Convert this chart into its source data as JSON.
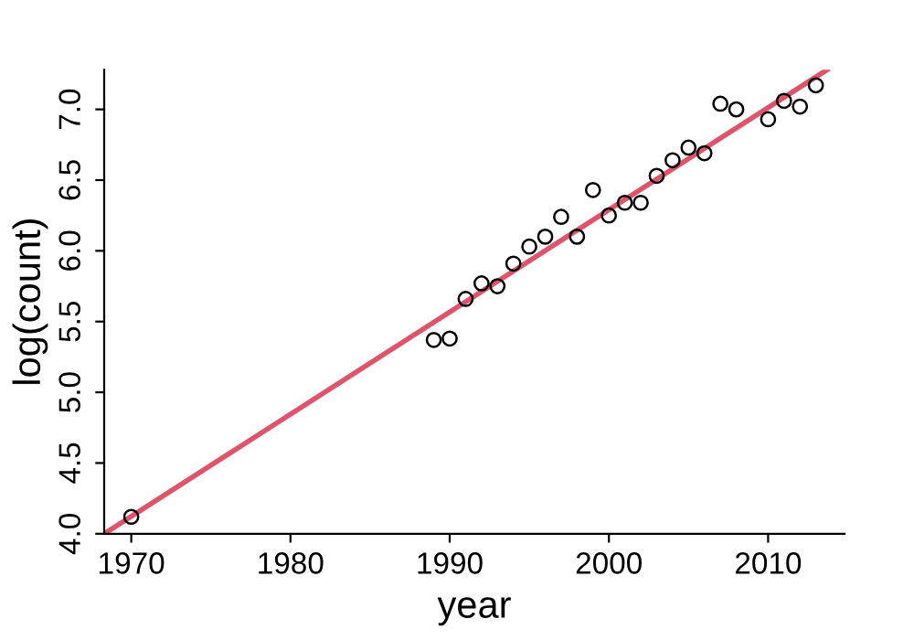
{
  "chart_data": {
    "type": "scatter",
    "xlabel": "year",
    "ylabel": "log(count)",
    "xlim": [
      1968.3,
      2014.8
    ],
    "ylim": [
      4.0,
      7.28
    ],
    "xticks": [
      1970,
      1980,
      1990,
      2000,
      2010
    ],
    "yticks": [
      {
        "value": 4.0,
        "label": "4.0"
      },
      4.5,
      {
        "value": 5.0,
        "label": "5.0"
      },
      5.5,
      {
        "value": 6.0,
        "label": "6.0"
      },
      6.5,
      {
        "value": 7.0,
        "label": "7.0"
      }
    ],
    "grid": false,
    "legend": false,
    "series": [
      {
        "marker": "circle",
        "color": "#000000",
        "x": [
          1970,
          1989,
          1990,
          1991,
          1992,
          1993,
          1994,
          1995,
          1996,
          1997,
          1998,
          1999,
          2000,
          2001,
          2002,
          2003,
          2004,
          2005,
          2006,
          2007,
          2008,
          2010,
          2011,
          2012,
          2013
        ],
        "values": [
          4.12,
          5.37,
          5.38,
          5.66,
          5.77,
          5.75,
          5.91,
          6.03,
          6.1,
          6.24,
          6.1,
          6.43,
          6.25,
          6.34,
          6.34,
          6.53,
          6.64,
          6.73,
          6.69,
          7.04,
          7.0,
          6.93,
          7.06,
          7.02,
          7.17
        ]
      },
      {
        "type": "line",
        "marker": "none",
        "color": "#df536b",
        "line_style": "solid",
        "x": [
          1968.3,
          2013.7
        ],
        "values": [
          4.0,
          7.28
        ]
      }
    ]
  }
}
